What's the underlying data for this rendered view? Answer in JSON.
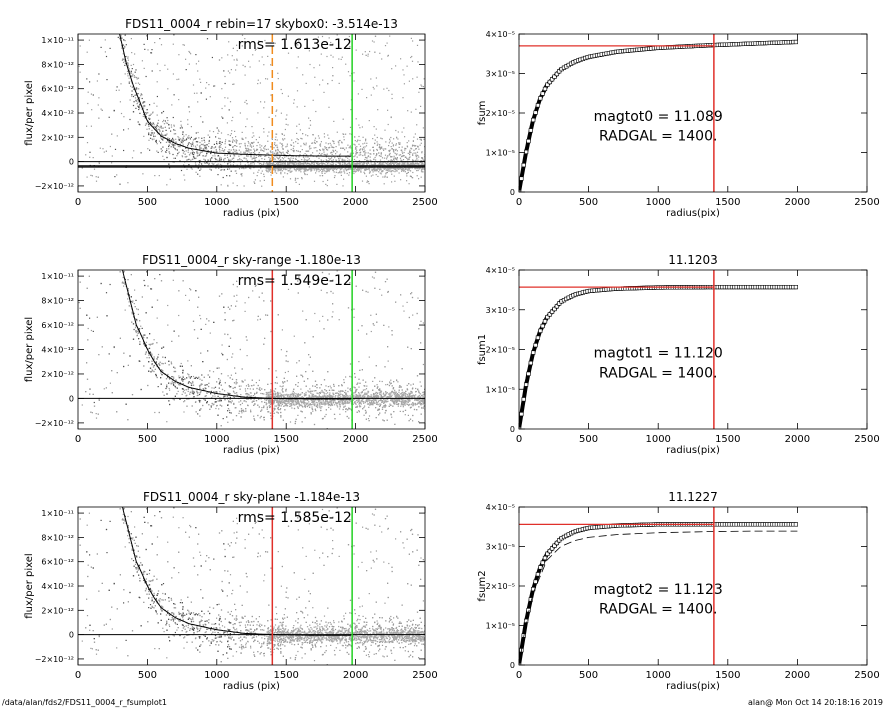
{
  "footer": {
    "path": "/data/alan/fds2/FDS11_0004_r_fsumplot1",
    "stamp": "alan@  Mon Oct 14 20:18:16 2019"
  },
  "colors": {
    "points": "#9a9a9a",
    "dark_points": "#505050",
    "profile_line": "#000000",
    "red_line": "#e0302a",
    "green_line": "#22d022",
    "orange_line": "#f08c1e"
  },
  "chart_data": [
    {
      "type": "scatter",
      "title": "FDS11_0004_r rebin=17    skybox0: -3.514e-13",
      "rms_label": "rms= 1.613e-12",
      "xlabel": "radius (pix)",
      "ylabel": "flux/per pixel",
      "xlim": [
        0,
        2500
      ],
      "ylim": [
        -2.5e-12,
        1.05e-11
      ],
      "xticks": [
        0,
        500,
        1000,
        1500,
        2000,
        2500
      ],
      "xtick_labels": [
        "0",
        "500",
        "1000",
        "1500",
        "2000",
        "2500"
      ],
      "yticks": [
        1e-11,
        8e-12,
        6e-12,
        4e-12,
        2e-12,
        0,
        -2e-12
      ],
      "ytick_labels": [
        "1×10⁻¹¹",
        "8×10⁻¹²",
        "6×10⁻¹²",
        "4×10⁻¹²",
        "2×10⁻¹²",
        "0",
        "−2×10⁻¹²"
      ],
      "profile": {
        "x": [
          300,
          350,
          400,
          450,
          500,
          600,
          700,
          800,
          1000,
          1200,
          1500,
          1800,
          1975
        ],
        "y": [
          1.05e-11,
          8e-12,
          6.2e-12,
          4.8e-12,
          3.3e-12,
          2.1e-12,
          1.5e-12,
          1.1e-12,
          7e-13,
          6e-13,
          5e-13,
          4.5e-13,
          4.5e-13
        ]
      },
      "hlines": [
        -3.5e-13,
        -4.5e-13,
        0
      ],
      "vlines": [
        {
          "x": 1400,
          "color": "orange",
          "dashed": true
        },
        {
          "x": 1975,
          "color": "green",
          "dashed": false
        }
      ]
    },
    {
      "type": "line",
      "title": "",
      "xlabel": "radius(pix)",
      "ylabel": "fsum",
      "xlim": [
        0,
        2500
      ],
      "ylim": [
        0,
        4e-05
      ],
      "xticks": [
        0,
        500,
        1000,
        1500,
        2000,
        2500
      ],
      "xtick_labels": [
        "0",
        "500",
        "1000",
        "1500",
        "2000",
        "2500"
      ],
      "yticks": [
        0,
        1e-05,
        2e-05,
        3e-05,
        4e-05
      ],
      "ytick_labels": [
        "0",
        "1×10⁻⁵",
        "2×10⁻⁵",
        "3×10⁻⁵",
        "4×10⁻⁵"
      ],
      "curve": {
        "x": [
          0,
          25,
          50,
          100,
          150,
          200,
          300,
          400,
          500,
          700,
          1000,
          1400,
          1700,
          2000
        ],
        "y": [
          0,
          5e-06,
          1e-05,
          1.8e-05,
          2.35e-05,
          2.7e-05,
          3.1e-05,
          3.3e-05,
          3.42e-05,
          3.55e-05,
          3.65e-05,
          3.72e-05,
          3.76e-05,
          3.8e-05
        ]
      },
      "red_hline": 3.7e-05,
      "red_vline": 1400,
      "annotations": [
        "magtot0 =  11.089",
        "RADGAL =   1400."
      ]
    },
    {
      "type": "scatter",
      "title": "FDS11_0004_r sky-range -1.180e-13",
      "rms_label": "rms= 1.549e-12",
      "xlabel": "radius (pix)",
      "ylabel": "flux/per pixel",
      "xlim": [
        0,
        2500
      ],
      "ylim": [
        -2.5e-12,
        1.05e-11
      ],
      "xticks": [
        0,
        500,
        1000,
        1500,
        2000,
        2500
      ],
      "xtick_labels": [
        "0",
        "500",
        "1000",
        "1500",
        "2000",
        "2500"
      ],
      "yticks": [
        1e-11,
        8e-12,
        6e-12,
        4e-12,
        2e-12,
        0,
        -2e-12
      ],
      "ytick_labels": [
        "1×10⁻¹¹",
        "8×10⁻¹²",
        "6×10⁻¹²",
        "4×10⁻¹²",
        "2×10⁻¹²",
        "0",
        "−2×10⁻¹²"
      ],
      "profile": {
        "x": [
          320,
          380,
          420,
          450,
          500,
          550,
          600,
          700,
          800,
          1000,
          1200,
          1400,
          1700,
          1975
        ],
        "y": [
          1.05e-11,
          7.8e-12,
          6e-12,
          5.3e-12,
          4e-12,
          3e-12,
          2.2e-12,
          1.4e-12,
          9e-13,
          4e-13,
          1e-13,
          0,
          -5e-14,
          -5e-14
        ]
      },
      "hlines": [
        0
      ],
      "vlines": [
        {
          "x": 1400,
          "color": "red",
          "dashed": false
        },
        {
          "x": 1975,
          "color": "green",
          "dashed": false
        }
      ]
    },
    {
      "type": "line",
      "title": "11.1203",
      "xlabel": "radius(pix)",
      "ylabel": "fsum1",
      "xlim": [
        0,
        2500
      ],
      "ylim": [
        0,
        4e-05
      ],
      "xticks": [
        0,
        500,
        1000,
        1500,
        2000,
        2500
      ],
      "xtick_labels": [
        "0",
        "500",
        "1000",
        "1500",
        "2000",
        "2500"
      ],
      "yticks": [
        0,
        1e-05,
        2e-05,
        3e-05,
        4e-05
      ],
      "ytick_labels": [
        "0",
        "1×10⁻⁵",
        "2×10⁻⁵",
        "3×10⁻⁵",
        "4×10⁻⁵"
      ],
      "curve": {
        "x": [
          0,
          25,
          50,
          100,
          150,
          200,
          300,
          400,
          500,
          700,
          1000,
          1400,
          1700,
          2000
        ],
        "y": [
          0,
          5.5e-06,
          1.1e-05,
          1.9e-05,
          2.45e-05,
          2.8e-05,
          3.2e-05,
          3.38e-05,
          3.47e-05,
          3.53e-05,
          3.56e-05,
          3.57e-05,
          3.57e-05,
          3.57e-05
        ]
      },
      "red_hline": 3.57e-05,
      "red_vline": 1400,
      "annotations": [
        "magtot1 =  11.120",
        "RADGAL =   1400."
      ]
    },
    {
      "type": "scatter",
      "title": "FDS11_0004_r sky-plane -1.184e-13",
      "rms_label": "rms= 1.585e-12",
      "xlabel": "radius (pix)",
      "ylabel": "flux/per pixel",
      "xlim": [
        0,
        2500
      ],
      "ylim": [
        -2.5e-12,
        1.05e-11
      ],
      "xticks": [
        0,
        500,
        1000,
        1500,
        2000,
        2500
      ],
      "xtick_labels": [
        "0",
        "500",
        "1000",
        "1500",
        "2000",
        "2500"
      ],
      "yticks": [
        1e-11,
        8e-12,
        6e-12,
        4e-12,
        2e-12,
        0,
        -2e-12
      ],
      "ytick_labels": [
        "1×10⁻¹¹",
        "8×10⁻¹²",
        "6×10⁻¹²",
        "4×10⁻¹²",
        "2×10⁻¹²",
        "0",
        "−2×10⁻¹²"
      ],
      "profile": {
        "x": [
          320,
          380,
          420,
          450,
          500,
          550,
          600,
          700,
          800,
          1000,
          1200,
          1400,
          1700,
          1975
        ],
        "y": [
          1.05e-11,
          7.8e-12,
          6e-12,
          5.3e-12,
          4e-12,
          3e-12,
          2.2e-12,
          1.4e-12,
          9e-13,
          4e-13,
          1e-13,
          0,
          -5e-14,
          -5e-14
        ]
      },
      "hlines": [
        0
      ],
      "vlines": [
        {
          "x": 1400,
          "color": "red",
          "dashed": false
        },
        {
          "x": 1975,
          "color": "green",
          "dashed": false
        }
      ]
    },
    {
      "type": "line",
      "title": "11.1227",
      "xlabel": "radius(pix)",
      "ylabel": "fsum2",
      "xlim": [
        0,
        2500
      ],
      "ylim": [
        0,
        4e-05
      ],
      "xticks": [
        0,
        500,
        1000,
        1500,
        2000,
        2500
      ],
      "xtick_labels": [
        "0",
        "500",
        "1000",
        "1500",
        "2000",
        "2500"
      ],
      "yticks": [
        0,
        1e-05,
        2e-05,
        3e-05,
        4e-05
      ],
      "ytick_labels": [
        "0",
        "1×10⁻⁵",
        "2×10⁻⁵",
        "3×10⁻⁵",
        "4×10⁻⁵"
      ],
      "curve": {
        "x": [
          0,
          25,
          50,
          100,
          150,
          200,
          300,
          400,
          500,
          700,
          1000,
          1400,
          1700,
          2000
        ],
        "y": [
          0,
          5.5e-06,
          1.1e-05,
          1.9e-05,
          2.45e-05,
          2.8e-05,
          3.2e-05,
          3.38e-05,
          3.47e-05,
          3.53e-05,
          3.56e-05,
          3.56e-05,
          3.56e-05,
          3.56e-05
        ]
      },
      "dashed_curve": {
        "x": [
          0,
          50,
          100,
          200,
          300,
          400,
          500,
          700,
          1000,
          1400,
          1700,
          2000
        ],
        "y": [
          0,
          1.05e-05,
          1.8e-05,
          2.65e-05,
          3e-05,
          3.15e-05,
          3.23e-05,
          3.3e-05,
          3.35e-05,
          3.38e-05,
          3.39e-05,
          3.39e-05
        ]
      },
      "red_hline": 3.56e-05,
      "red_vline": 1400,
      "annotations": [
        "magtot2 =  11.123",
        "RADGAL =   1400."
      ]
    }
  ]
}
